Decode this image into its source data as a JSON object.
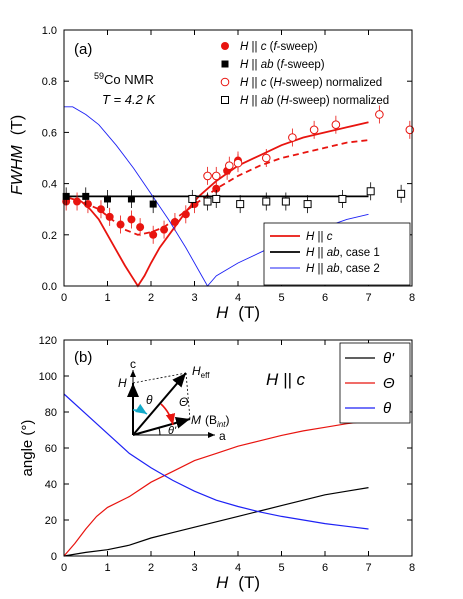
{
  "colors": {
    "red": "#e8140f",
    "black": "#000000",
    "blue": "#1e22f5",
    "cyan": "#12a9c8"
  },
  "chart_data": [
    {
      "type": "scatter",
      "panel_label": "(a)",
      "title_lines": [
        "Co NMR",
        "T = 4.2 K"
      ],
      "isotope": "59",
      "xlabel": "H",
      "xunit": "(T)",
      "ylabel": "FWHM",
      "yunit": "(T)",
      "xlim": [
        0,
        8
      ],
      "ylim": [
        0,
        1.0
      ],
      "xticks": [
        "0",
        "1",
        "2",
        "3",
        "4",
        "5",
        "6",
        "7",
        "8"
      ],
      "yticks": [
        "0.0",
        "0.2",
        "0.4",
        "0.6",
        "0.8",
        "1.0"
      ],
      "legend_top": [
        {
          "text": "H || c (f-sweep)",
          "marker": "filled-circle",
          "color": "#e8140f"
        },
        {
          "text": "H || ab (f-sweep)",
          "marker": "filled-square",
          "color": "#000000"
        },
        {
          "text": "H || c (H-sweep) normalized",
          "marker": "open-circle",
          "color": "#e8140f"
        },
        {
          "text": "H || ab (H-sweep) normalized",
          "marker": "open-square",
          "color": "#000000"
        }
      ],
      "legend_bottom": [
        {
          "text": "H || c",
          "color": "#e8140f"
        },
        {
          "text": "H || ab, case 1",
          "color": "#000000"
        },
        {
          "text": "H || ab, case 2",
          "color": "#1e22f5"
        }
      ],
      "series": [
        {
          "name": "H || c (f-sweep)",
          "marker": "filled-circle",
          "color": "#e8140f",
          "points": [
            [
              0.05,
              0.33
            ],
            [
              0.3,
              0.33
            ],
            [
              0.55,
              0.32
            ],
            [
              0.85,
              0.3
            ],
            [
              1.05,
              0.27
            ],
            [
              1.3,
              0.24
            ],
            [
              1.55,
              0.26
            ],
            [
              1.75,
              0.23
            ],
            [
              2.05,
              0.2
            ],
            [
              2.3,
              0.22
            ],
            [
              2.55,
              0.25
            ],
            [
              2.8,
              0.28
            ],
            [
              3.0,
              0.32
            ],
            [
              3.5,
              0.38
            ],
            [
              3.75,
              0.45
            ],
            [
              4.0,
              0.49
            ]
          ]
        },
        {
          "name": "H || ab (f-sweep)",
          "marker": "filled-square",
          "color": "#000000",
          "points": [
            [
              0.05,
              0.35
            ],
            [
              0.5,
              0.35
            ],
            [
              1.0,
              0.34
            ],
            [
              1.55,
              0.34
            ],
            [
              2.05,
              0.32
            ]
          ]
        },
        {
          "name": "H || c (H-sweep) normalized",
          "marker": "open-circle",
          "color": "#e8140f",
          "points": [
            [
              3.3,
              0.43
            ],
            [
              3.5,
              0.43
            ],
            [
              3.8,
              0.47
            ],
            [
              4.0,
              0.48
            ],
            [
              4.65,
              0.5
            ],
            [
              5.25,
              0.58
            ],
            [
              5.75,
              0.61
            ],
            [
              6.25,
              0.63
            ],
            [
              7.25,
              0.67
            ],
            [
              7.95,
              0.61
            ]
          ]
        },
        {
          "name": "H || ab (H-sweep) normalized",
          "marker": "open-square",
          "color": "#000000",
          "points": [
            [
              2.95,
              0.34
            ],
            [
              3.3,
              0.33
            ],
            [
              3.5,
              0.34
            ],
            [
              4.05,
              0.32
            ],
            [
              4.65,
              0.33
            ],
            [
              5.1,
              0.33
            ],
            [
              5.6,
              0.32
            ],
            [
              6.4,
              0.34
            ],
            [
              7.05,
              0.37
            ],
            [
              7.75,
              0.36
            ]
          ]
        },
        {
          "name": "H || c",
          "line": "solid",
          "color": "#e8140f",
          "points": [
            [
              0,
              0.35
            ],
            [
              0.2,
              0.34
            ],
            [
              0.4,
              0.33
            ],
            [
              0.6,
              0.3
            ],
            [
              0.8,
              0.26
            ],
            [
              1.0,
              0.2
            ],
            [
              1.2,
              0.14
            ],
            [
              1.4,
              0.08
            ],
            [
              1.55,
              0.04
            ],
            [
              1.7,
              0.0
            ],
            [
              1.85,
              0.04
            ],
            [
              2.0,
              0.09
            ],
            [
              2.2,
              0.15
            ],
            [
              2.5,
              0.22
            ],
            [
              2.8,
              0.29
            ],
            [
              3.1,
              0.35
            ],
            [
              3.5,
              0.41
            ],
            [
              4.0,
              0.47
            ],
            [
              4.5,
              0.51
            ],
            [
              5.0,
              0.55
            ],
            [
              5.5,
              0.58
            ],
            [
              6.0,
              0.6
            ],
            [
              6.5,
              0.62
            ],
            [
              7.0,
              0.64
            ]
          ]
        },
        {
          "name": "H || c (dashed)",
          "line": "dashed",
          "color": "#e8140f",
          "points": [
            [
              0,
              0.34
            ],
            [
              0.4,
              0.33
            ],
            [
              0.8,
              0.3
            ],
            [
              1.1,
              0.26
            ],
            [
              1.4,
              0.22
            ],
            [
              1.7,
              0.2
            ],
            [
              2.0,
              0.21
            ],
            [
              2.3,
              0.23
            ],
            [
              2.7,
              0.28
            ],
            [
              3.1,
              0.33
            ],
            [
              3.5,
              0.38
            ],
            [
              4.0,
              0.43
            ],
            [
              4.5,
              0.47
            ],
            [
              5.0,
              0.5
            ],
            [
              5.5,
              0.52
            ],
            [
              6.0,
              0.54
            ],
            [
              6.5,
              0.56
            ],
            [
              7.0,
              0.57
            ]
          ]
        },
        {
          "name": "H || ab, case 1",
          "line": "solid",
          "color": "#000000",
          "points": [
            [
              0,
              0.35
            ],
            [
              7.0,
              0.35
            ]
          ]
        },
        {
          "name": "H || ab, case 2",
          "line": "solid",
          "color": "#1e22f5",
          "points": [
            [
              0,
              0.7
            ],
            [
              0.2,
              0.7
            ],
            [
              0.5,
              0.67
            ],
            [
              0.8,
              0.63
            ],
            [
              1.2,
              0.55
            ],
            [
              1.6,
              0.46
            ],
            [
              2.0,
              0.36
            ],
            [
              2.4,
              0.26
            ],
            [
              2.8,
              0.15
            ],
            [
              3.1,
              0.06
            ],
            [
              3.3,
              0.0
            ],
            [
              3.5,
              0.04
            ],
            [
              4.0,
              0.09
            ],
            [
              4.5,
              0.13
            ],
            [
              5.0,
              0.17
            ],
            [
              5.5,
              0.2
            ],
            [
              6.0,
              0.23
            ],
            [
              6.5,
              0.26
            ],
            [
              7.0,
              0.28
            ]
          ]
        }
      ]
    },
    {
      "type": "line",
      "panel_label": "(b)",
      "header": "H || c",
      "xlabel": "H",
      "xunit": "(T)",
      "ylabel": "angle (°)",
      "xlim": [
        0,
        8
      ],
      "ylim": [
        0,
        120
      ],
      "xticks": [
        "0",
        "1",
        "2",
        "3",
        "4",
        "5",
        "6",
        "7",
        "8"
      ],
      "yticks": [
        "0",
        "20",
        "40",
        "60",
        "80",
        "100",
        "120"
      ],
      "legend": [
        {
          "text": "θ'",
          "color": "#000000"
        },
        {
          "text": "Θ",
          "color": "#e8140f"
        },
        {
          "text": "θ",
          "color": "#1e22f5"
        }
      ],
      "series": [
        {
          "name": "θ'",
          "color": "#000000",
          "points": [
            [
              0,
              0
            ],
            [
              0.5,
              2
            ],
            [
              1.0,
              3.5
            ],
            [
              1.5,
              6
            ],
            [
              2.0,
              10
            ],
            [
              2.5,
              13
            ],
            [
              3.0,
              16
            ],
            [
              3.5,
              19
            ],
            [
              4.0,
              22
            ],
            [
              4.5,
              25
            ],
            [
              5.0,
              28
            ],
            [
              5.5,
              31
            ],
            [
              6.0,
              34
            ],
            [
              6.5,
              36
            ],
            [
              7.0,
              38
            ]
          ]
        },
        {
          "name": "Θ",
          "color": "#e8140f",
          "points": [
            [
              0,
              0
            ],
            [
              0.25,
              7
            ],
            [
              0.5,
              15
            ],
            [
              0.75,
              22
            ],
            [
              1.0,
              27
            ],
            [
              1.5,
              33
            ],
            [
              2.0,
              41
            ],
            [
              2.5,
              47
            ],
            [
              3.0,
              53
            ],
            [
              3.5,
              57
            ],
            [
              4.0,
              61
            ],
            [
              4.5,
              64
            ],
            [
              5.0,
              67
            ],
            [
              5.5,
              69.5
            ],
            [
              6.0,
              71.5
            ],
            [
              6.5,
              73.5
            ],
            [
              7.0,
              75
            ]
          ]
        },
        {
          "name": "θ",
          "color": "#1e22f5",
          "points": [
            [
              0,
              90
            ],
            [
              0.5,
              79
            ],
            [
              1.0,
              68
            ],
            [
              1.5,
              57
            ],
            [
              2.0,
              49
            ],
            [
              2.5,
              42
            ],
            [
              3.0,
              36
            ],
            [
              3.5,
              31
            ],
            [
              4.0,
              27.5
            ],
            [
              4.5,
              24.5
            ],
            [
              5.0,
              22
            ],
            [
              5.5,
              20
            ],
            [
              6.0,
              18
            ],
            [
              6.5,
              16.5
            ],
            [
              7.0,
              15
            ]
          ]
        }
      ],
      "inset": {
        "axis_c": "c",
        "axis_a": "a",
        "H": "H",
        "Heff": "H",
        "Heff_sub": "eff",
        "M": "M",
        "Bint_open": "(B",
        "Bint_sub": "int",
        "Bint_close": ")",
        "theta": "θ",
        "Theta": "Θ",
        "theta_prime": "θ'"
      }
    }
  ]
}
